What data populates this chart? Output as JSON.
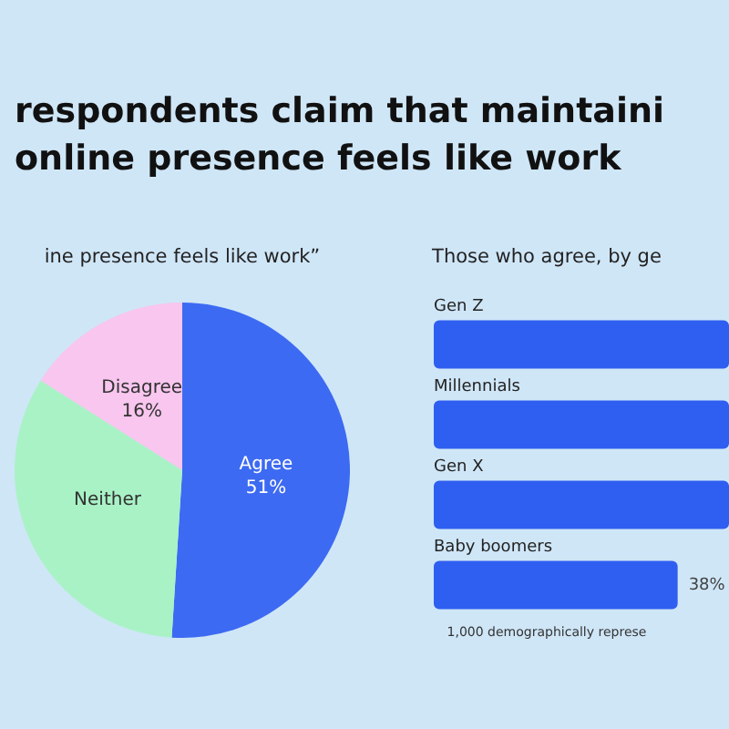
{
  "chart_data": [
    {
      "type": "pie",
      "title": "respondents claim that maintaini online presence feels like work",
      "subtitle": "ine presence feels like work”",
      "categories": [
        "Agree",
        "Neither",
        "Disagree"
      ],
      "values": [
        51,
        33,
        16
      ],
      "colors": [
        "#3d6af2",
        "#a9f2c6",
        "#f8c6ee"
      ],
      "value_labels": [
        "51%",
        null,
        "16%"
      ]
    },
    {
      "type": "bar",
      "orientation": "horizontal",
      "tick_labels": false,
      "xlim": [
        0,
        46
      ],
      "title": "Those who agree, by ge",
      "categories": [
        "Gen Z",
        "Millennials",
        "Gen X",
        "Baby boomers"
      ],
      "values": [
        46,
        46,
        46,
        38
      ],
      "color": "#2f5ff0",
      "value_labels": [
        null,
        null,
        null,
        "38%"
      ],
      "annotations": [
        "1,000 demographically represe"
      ]
    }
  ]
}
